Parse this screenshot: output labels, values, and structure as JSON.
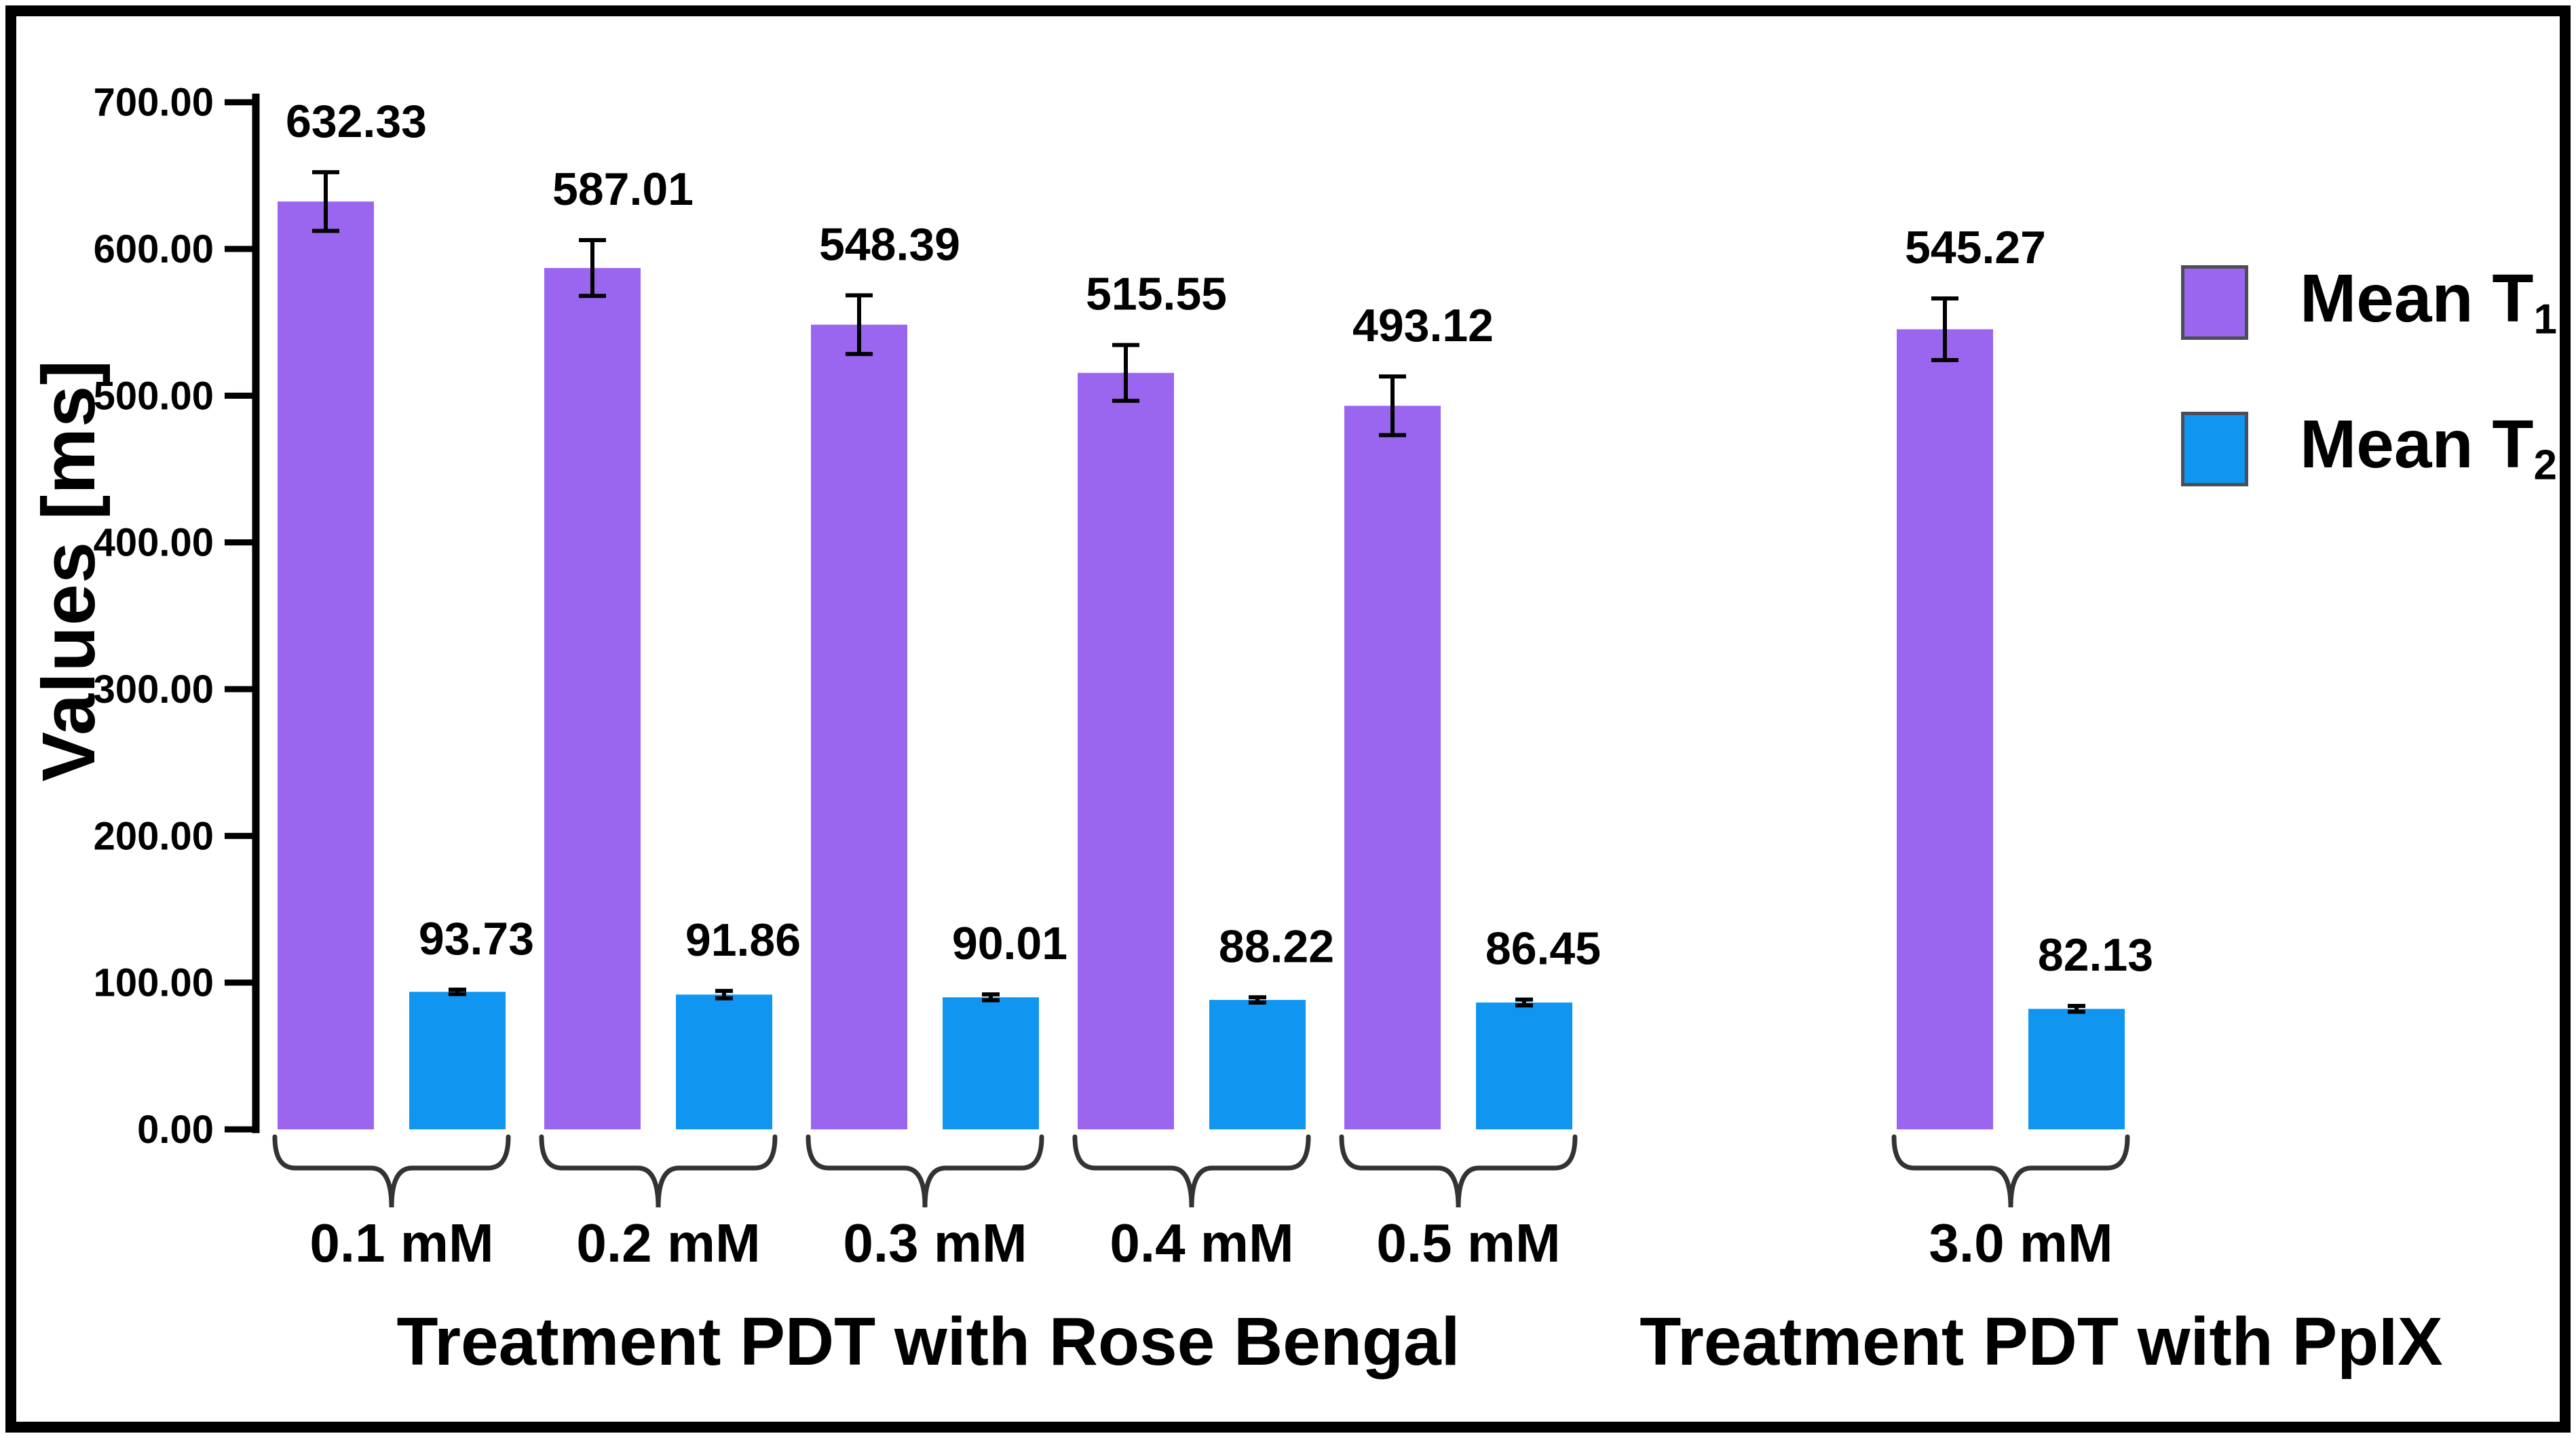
{
  "chart_data": {
    "type": "bar",
    "title": "",
    "xlabel": "",
    "ylabel": "Values [ms]",
    "ylim": [
      0,
      700
    ],
    "ytick_step": 100,
    "ytick_labels": [
      "0.00",
      "100.00",
      "200.00",
      "300.00",
      "400.00",
      "500.00",
      "600.00",
      "700.00"
    ],
    "grid": false,
    "error_bars": true,
    "legend_position": "right",
    "categories": [
      "0.1 mM",
      "0.2 mM",
      "0.3 mM",
      "0.4 mM",
      "0.5 mM",
      "3.0 mM"
    ],
    "group_sections": [
      {
        "label": "Treatment PDT with Rose Bengal",
        "categories": [
          "0.1 mM",
          "0.2 mM",
          "0.3 mM",
          "0.4 mM",
          "0.5 mM"
        ]
      },
      {
        "label": "Treatment PDT with PpIX",
        "categories": [
          "3.0 mM"
        ]
      }
    ],
    "series": [
      {
        "name": "Mean T1",
        "display": {
          "base": "Mean T",
          "sub": "1"
        },
        "color": "#9a66f0",
        "values": [
          632.33,
          587.01,
          548.39,
          515.55,
          493.12,
          545.27
        ],
        "errors": [
          20,
          19,
          20,
          19,
          20,
          21
        ]
      },
      {
        "name": "Mean T2",
        "display": {
          "base": "Mean T",
          "sub": "2"
        },
        "color": "#1096f0",
        "values": [
          93.73,
          91.86,
          90.01,
          88.22,
          86.45,
          82.13
        ],
        "errors": [
          1.5,
          2.5,
          2,
          1.8,
          2,
          2
        ]
      }
    ],
    "colors": {
      "axis": "#000000",
      "text": "#000000",
      "brace": "#333333",
      "background": "#ffffff",
      "frame_border": "#000000"
    }
  }
}
